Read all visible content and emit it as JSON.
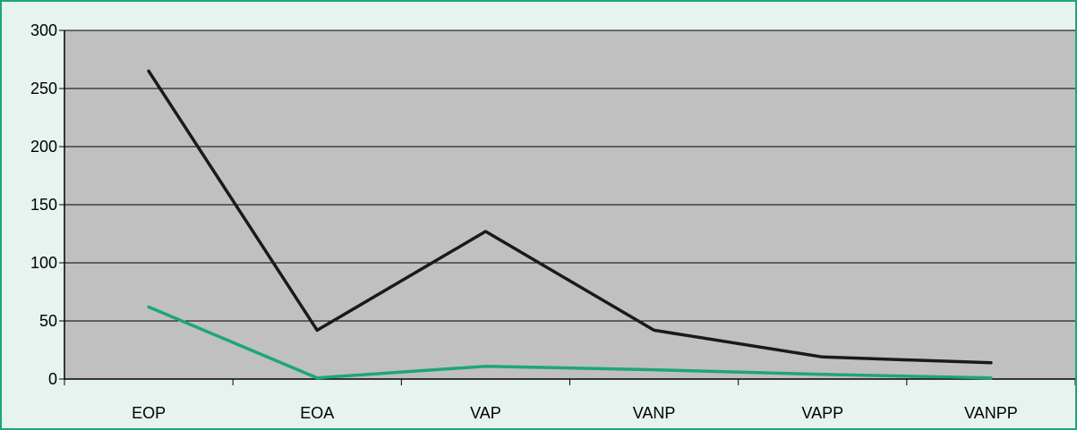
{
  "chart_data": {
    "type": "line",
    "categories": [
      "EOP",
      "EOA",
      "VAP",
      "VANP",
      "VAPP",
      "VANPP"
    ],
    "series": [
      {
        "values": [
          265,
          42,
          127,
          42,
          19,
          14
        ],
        "color": "#1a1a1a"
      },
      {
        "values": [
          62,
          1,
          11,
          8,
          4,
          1
        ],
        "color": "#1fa57a"
      }
    ],
    "y_ticks": [
      "0",
      "50",
      "100",
      "150",
      "200",
      "250",
      "300"
    ],
    "ylim": [
      0,
      300
    ],
    "grid": true,
    "plot_background": "#c0c0c0",
    "title": "",
    "xlabel": "",
    "ylabel": ""
  }
}
